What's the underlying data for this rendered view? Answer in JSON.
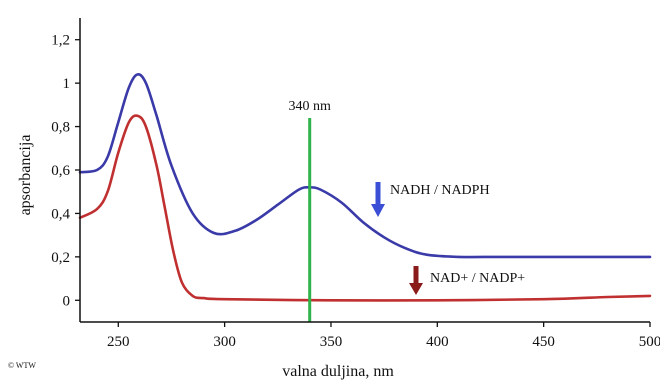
{
  "chart_data": {
    "type": "line",
    "title": "",
    "xlabel": "valna duljina, nm",
    "ylabel": "apsorbancija",
    "xlim": [
      232,
      500
    ],
    "ylim": [
      -0.1,
      1.3
    ],
    "x_ticks": [
      250,
      300,
      350,
      400,
      450,
      500
    ],
    "x_tick_labels": [
      "250",
      "300",
      "350",
      "400",
      "450",
      "500"
    ],
    "y_ticks": [
      0,
      0.2,
      0.4,
      0.6,
      0.8,
      1,
      1.2
    ],
    "y_tick_labels": [
      "0",
      "0,2",
      "0,4",
      "0,6",
      "0,8",
      "1",
      "1,2"
    ],
    "grid": false,
    "series": [
      {
        "name": "NADH / NADPH",
        "color": "#3a3aa8",
        "x": [
          232,
          240,
          245,
          250,
          255,
          259,
          263,
          268,
          275,
          285,
          295,
          305,
          315,
          325,
          335,
          340,
          345,
          355,
          365,
          375,
          385,
          395,
          410,
          430,
          460,
          500
        ],
        "y": [
          0.59,
          0.6,
          0.66,
          0.82,
          0.98,
          1.04,
          1.0,
          0.85,
          0.62,
          0.4,
          0.31,
          0.32,
          0.37,
          0.44,
          0.51,
          0.52,
          0.51,
          0.45,
          0.36,
          0.29,
          0.24,
          0.21,
          0.2,
          0.2,
          0.2,
          0.2
        ]
      },
      {
        "name": "NAD+ / NADP+",
        "color": "#c03030",
        "x": [
          232,
          240,
          245,
          250,
          255,
          259,
          263,
          268,
          272,
          276,
          280,
          285,
          290,
          300,
          350,
          400,
          450,
          480,
          500
        ],
        "y": [
          0.38,
          0.42,
          0.5,
          0.68,
          0.82,
          0.85,
          0.8,
          0.62,
          0.42,
          0.22,
          0.08,
          0.02,
          0.01,
          0.005,
          0.0,
          0.0,
          0.005,
          0.015,
          0.02
        ]
      }
    ],
    "annotations": {
      "marker_line": {
        "x": 340,
        "label": "340 nm",
        "color": "#2fb34a"
      },
      "nadh_label": "NADH / NADPH",
      "nadh_arrow_color": "#3a4fd6",
      "nad_label": "NAD+ / NADP+",
      "nad_arrow_color": "#8b1a1a"
    },
    "credit": "© WTW"
  }
}
